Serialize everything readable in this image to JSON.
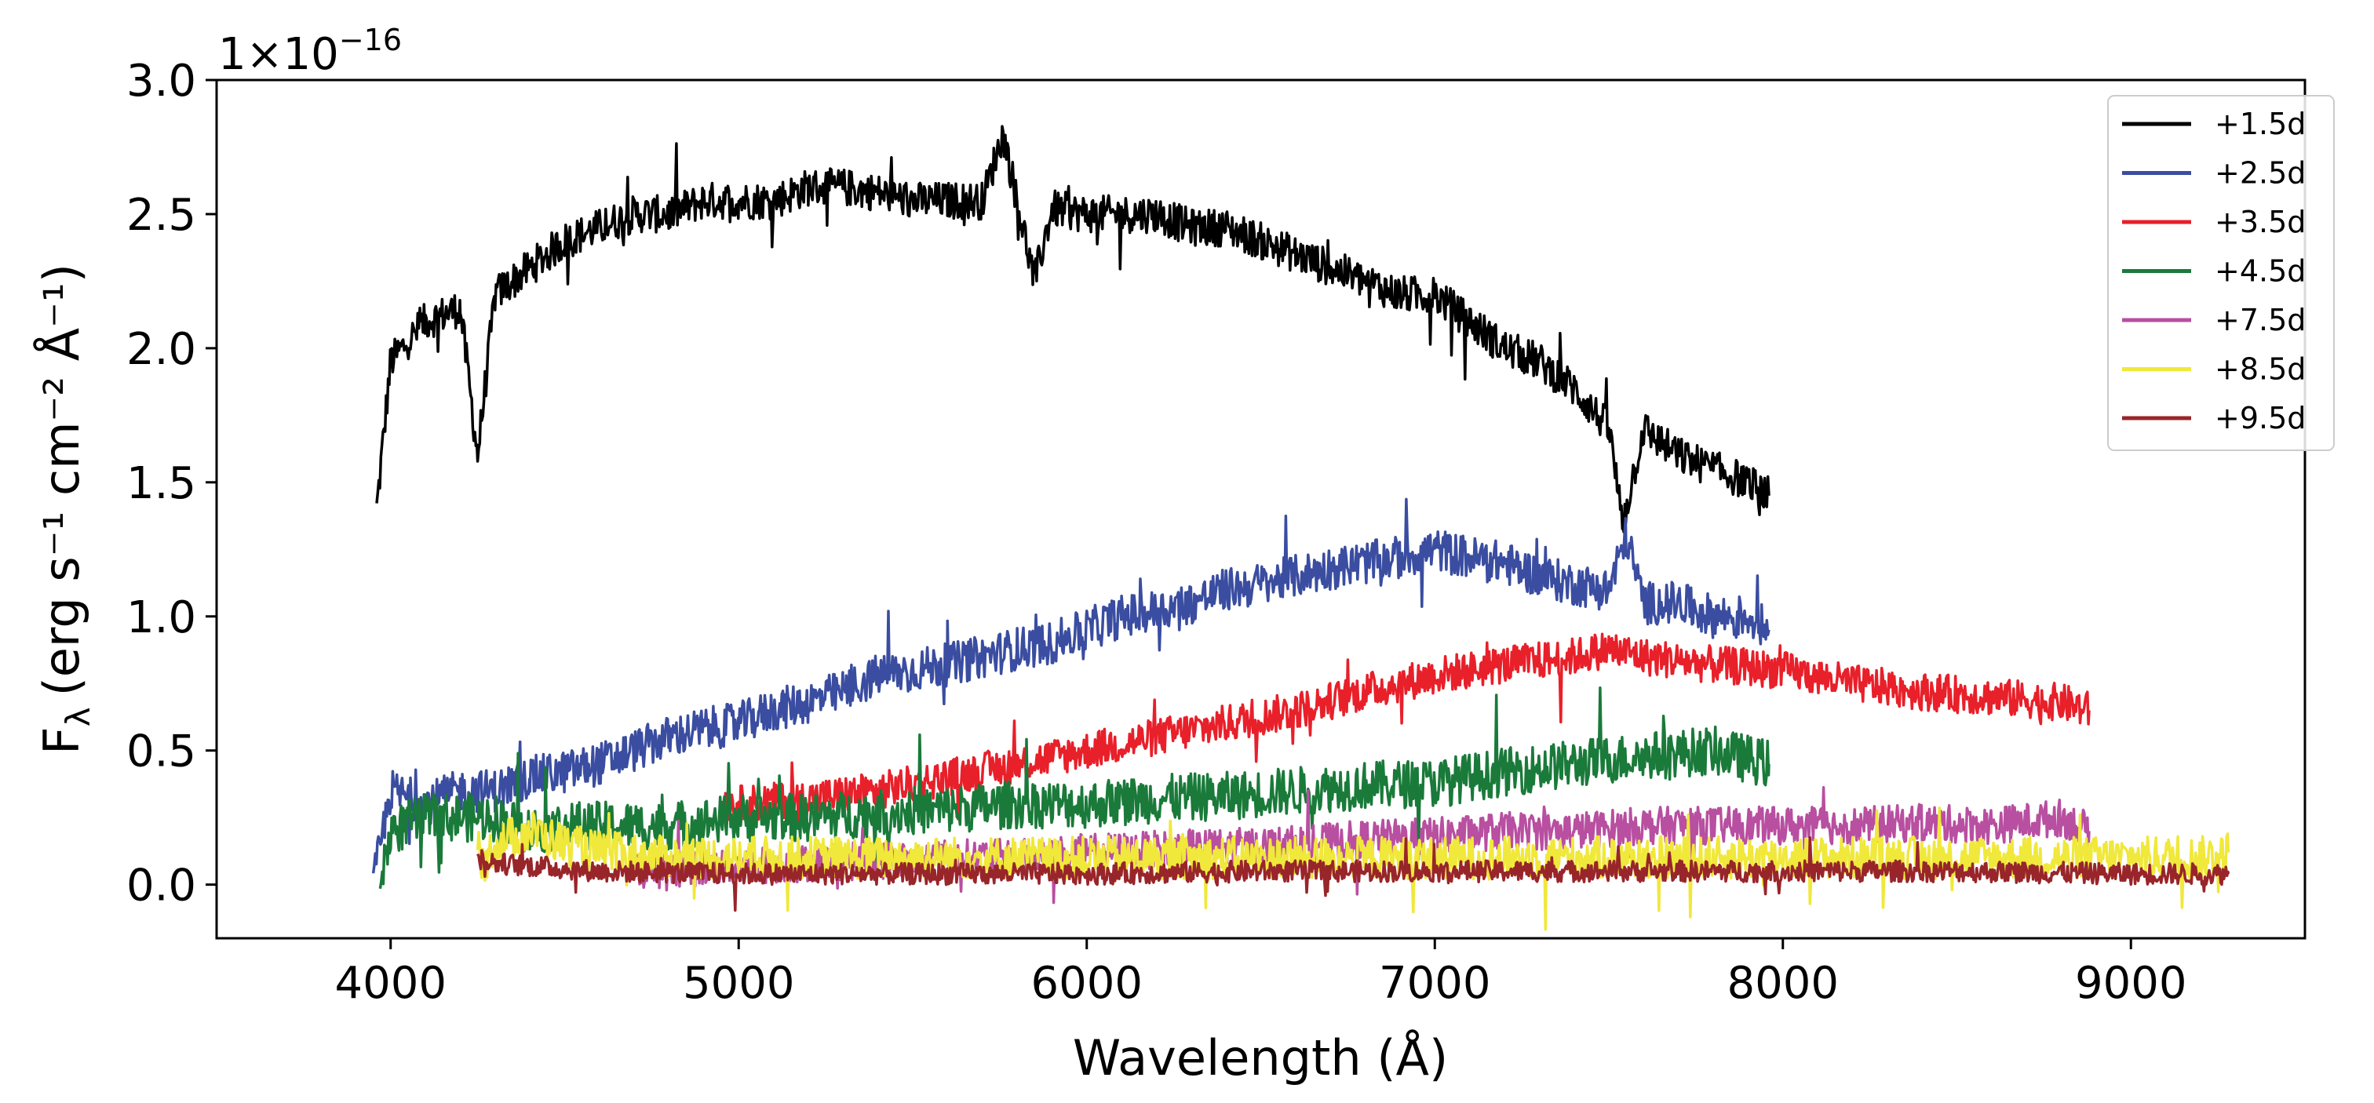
{
  "chart_data": {
    "type": "line",
    "title": "",
    "xlabel": "Wavelength (Å)",
    "ylabel_prefix": "F",
    "ylabel_subscript": "λ",
    "ylabel_suffix": "(erg s⁻¹ cm⁻² Å⁻¹)",
    "offset_text": "1×10",
    "offset_exponent": "−16",
    "xlim": [
      3500,
      9500
    ],
    "ylim": [
      -0.2,
      3.0
    ],
    "xticks": [
      4000,
      5000,
      6000,
      7000,
      8000,
      9000
    ],
    "xtick_labels": [
      "4000",
      "5000",
      "6000",
      "7000",
      "8000",
      "9000"
    ],
    "yticks": [
      0.0,
      0.5,
      1.0,
      1.5,
      2.0,
      2.5,
      3.0
    ],
    "ytick_labels": [
      "0.0",
      "0.5",
      "1.0",
      "1.5",
      "2.0",
      "2.5",
      "3.0"
    ],
    "legend_position": "top-right",
    "series": [
      {
        "name": "+1.5d",
        "color": "#000000",
        "x": [
          3960,
          4000,
          4100,
          4200,
          4250,
          4300,
          4400,
          4500,
          4600,
          4700,
          4800,
          4900,
          5000,
          5100,
          5200,
          5300,
          5400,
          5500,
          5600,
          5700,
          5760,
          5800,
          5850,
          5900,
          6000,
          6100,
          6200,
          6300,
          6400,
          6500,
          6600,
          6700,
          6800,
          6900,
          7000,
          7100,
          7200,
          7300,
          7400,
          7500,
          7540,
          7600,
          7700,
          7800,
          7900,
          7960
        ],
        "y": [
          1.4,
          1.95,
          2.1,
          2.15,
          1.6,
          2.2,
          2.3,
          2.4,
          2.45,
          2.5,
          2.5,
          2.55,
          2.55,
          2.55,
          2.6,
          2.6,
          2.58,
          2.55,
          2.55,
          2.55,
          2.8,
          2.55,
          2.25,
          2.52,
          2.5,
          2.5,
          2.5,
          2.45,
          2.45,
          2.4,
          2.35,
          2.3,
          2.25,
          2.2,
          2.2,
          2.1,
          2.0,
          1.95,
          1.85,
          1.7,
          1.35,
          1.7,
          1.6,
          1.55,
          1.5,
          1.45
        ],
        "noise": 0.07
      },
      {
        "name": "+2.5d",
        "color": "#3a4da0",
        "x": [
          3950,
          4000,
          4100,
          4200,
          4300,
          4400,
          4500,
          4600,
          4700,
          4800,
          4900,
          5000,
          5100,
          5200,
          5300,
          5400,
          5500,
          5600,
          5700,
          5800,
          5900,
          6000,
          6100,
          6200,
          6300,
          6400,
          6500,
          6600,
          6700,
          6800,
          6900,
          7000,
          7100,
          7200,
          7300,
          7400,
          7500,
          7550,
          7600,
          7700,
          7800,
          7900,
          7960
        ],
        "y": [
          0.0,
          0.35,
          0.3,
          0.35,
          0.35,
          0.4,
          0.42,
          0.45,
          0.5,
          0.55,
          0.58,
          0.6,
          0.65,
          0.68,
          0.72,
          0.78,
          0.8,
          0.82,
          0.85,
          0.88,
          0.9,
          0.95,
          1.0,
          1.02,
          1.05,
          1.1,
          1.12,
          1.15,
          1.18,
          1.2,
          1.22,
          1.25,
          1.22,
          1.2,
          1.15,
          1.12,
          1.1,
          1.3,
          1.05,
          1.05,
          1.0,
          1.0,
          0.95
        ],
        "noise": 0.08
      },
      {
        "name": "+3.5d",
        "color": "#e8202a",
        "x": [
          4950,
          5000,
          5200,
          5400,
          5600,
          5800,
          6000,
          6200,
          6400,
          6600,
          6800,
          7000,
          7200,
          7400,
          7500,
          7600,
          7800,
          8000,
          8200,
          8400,
          8600,
          8800,
          8880
        ],
        "y": [
          0.3,
          0.3,
          0.32,
          0.35,
          0.4,
          0.45,
          0.5,
          0.55,
          0.6,
          0.65,
          0.72,
          0.78,
          0.82,
          0.85,
          0.88,
          0.85,
          0.82,
          0.8,
          0.75,
          0.72,
          0.7,
          0.68,
          0.65
        ],
        "noise": 0.07
      },
      {
        "name": "+4.5d",
        "color": "#1a7a3a",
        "x": [
          3970,
          4000,
          4100,
          4200,
          4300,
          4400,
          4500,
          4600,
          4800,
          5000,
          5200,
          5400,
          5600,
          5800,
          6000,
          6200,
          6400,
          6600,
          6800,
          7000,
          7200,
          7400,
          7600,
          7800,
          7960
        ],
        "y": [
          0.0,
          0.2,
          0.25,
          0.25,
          0.25,
          0.2,
          0.22,
          0.22,
          0.22,
          0.25,
          0.25,
          0.27,
          0.28,
          0.3,
          0.3,
          0.32,
          0.33,
          0.35,
          0.37,
          0.38,
          0.42,
          0.45,
          0.48,
          0.5,
          0.45
        ],
        "noise": 0.09
      },
      {
        "name": "+7.5d",
        "color": "#b84fa0",
        "x": [
          4700,
          4800,
          5000,
          5200,
          5400,
          5600,
          5800,
          6000,
          6200,
          6400,
          6600,
          6800,
          7000,
          7200,
          7400,
          7600,
          7800,
          8000,
          8200,
          8400,
          8600,
          8800,
          8880
        ],
        "y": [
          0.05,
          0.06,
          0.07,
          0.08,
          0.09,
          0.1,
          0.1,
          0.12,
          0.13,
          0.14,
          0.15,
          0.17,
          0.18,
          0.2,
          0.2,
          0.22,
          0.22,
          0.22,
          0.22,
          0.23,
          0.22,
          0.25,
          0.2
        ],
        "noise": 0.07
      },
      {
        "name": "+8.5d",
        "color": "#f0e83a",
        "x": [
          4250,
          4300,
          4400,
          4500,
          4600,
          4800,
          5000,
          5500,
          6000,
          6500,
          7000,
          7500,
          8000,
          8500,
          9000,
          9200,
          9280
        ],
        "y": [
          0.05,
          0.15,
          0.2,
          0.15,
          0.12,
          0.1,
          0.1,
          0.1,
          0.1,
          0.1,
          0.1,
          0.1,
          0.1,
          0.1,
          0.1,
          0.1,
          0.12
        ],
        "noise": 0.08
      },
      {
        "name": "+9.5d",
        "color": "#98252a",
        "x": [
          4250,
          4300,
          4400,
          4600,
          5000,
          5500,
          6000,
          6500,
          7000,
          7500,
          8000,
          8500,
          9000,
          9280
        ],
        "y": [
          0.1,
          0.08,
          0.07,
          0.05,
          0.04,
          0.04,
          0.04,
          0.05,
          0.05,
          0.05,
          0.05,
          0.05,
          0.04,
          0.04
        ],
        "noise": 0.04
      }
    ]
  }
}
